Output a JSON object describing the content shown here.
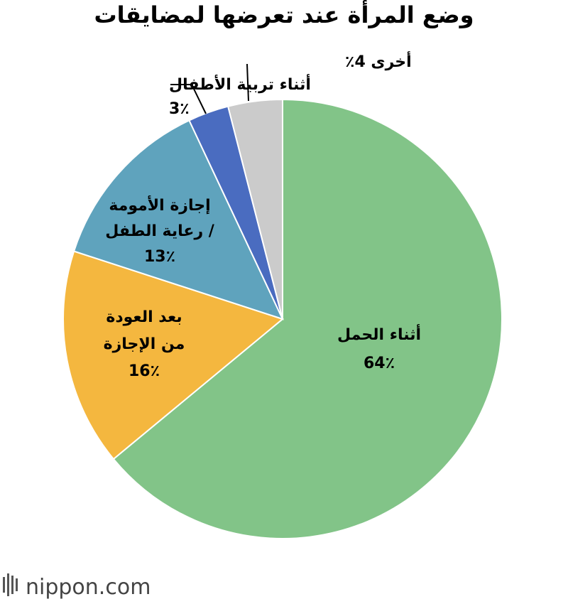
{
  "chart_data": {
    "type": "pie",
    "title": "وضع المرأة عند تعرضها لمضايقات",
    "slices": [
      {
        "label_lines": [
          "أثناء الحمل"
        ],
        "value": 64,
        "value_label": "64٪",
        "color": "#82c488",
        "label_color": "#000000"
      },
      {
        "label_lines": [
          "بعد العودة",
          "من الإجازة"
        ],
        "value": 16,
        "value_label": "16٪",
        "color": "#f4b73f",
        "label_color": "#000000"
      },
      {
        "label_lines": [
          "إجازة الأمومة",
          "/ رعاية الطفل"
        ],
        "value": 13,
        "value_label": "13٪",
        "color": "#5fa3bd",
        "label_color": "#ffffff"
      },
      {
        "label_lines": [
          "أثناء تربية الأطفال"
        ],
        "value": 3,
        "value_label": "3٪",
        "color": "#4a6cc0",
        "label_color": "#000000"
      },
      {
        "label_lines": [
          "أخرى"
        ],
        "value": 4,
        "value_label": "4٪",
        "color": "#cbcbcb",
        "label_color": "#000000"
      }
    ]
  },
  "branding": {
    "logo_text": "nippon.com"
  }
}
